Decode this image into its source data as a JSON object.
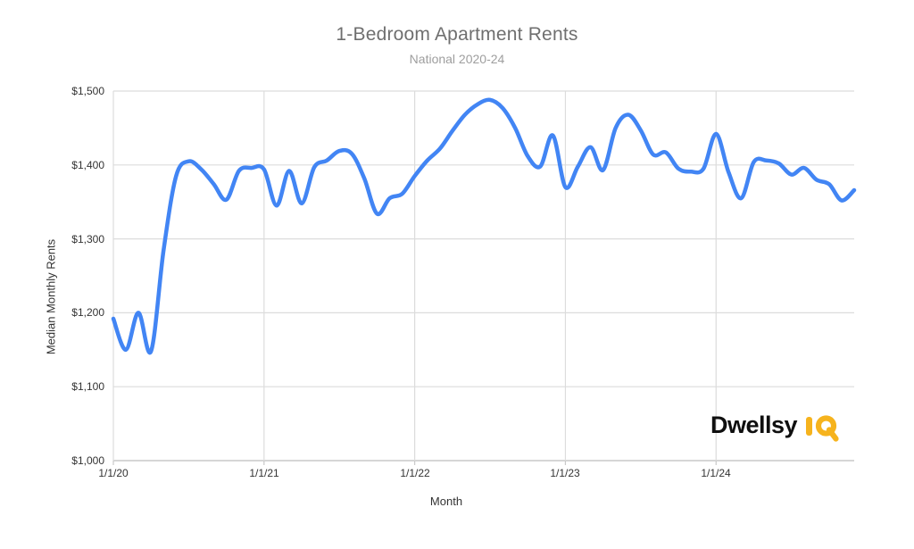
{
  "chart_data": {
    "type": "line",
    "title": "1-Bedroom Apartment Rents",
    "subtitle": "National 2020-24",
    "xlabel": "Month",
    "ylabel": "Median Monthly Rents",
    "x_tick_labels": [
      "1/1/20",
      "1/1/21",
      "1/1/22",
      "1/1/23",
      "1/1/24"
    ],
    "y_tick_labels": [
      "$1,000",
      "$1,100",
      "$1,200",
      "$1,300",
      "$1,400",
      "$1,500"
    ],
    "ylim": [
      1000,
      1500
    ],
    "y_tick_step": 100,
    "grid": true,
    "legend": "none",
    "line_color": "#4285F4",
    "grid_color": "#dcdcdc",
    "axis_color": "#c9c9c9",
    "months": [
      "1/2020",
      "2/2020",
      "3/2020",
      "4/2020",
      "5/2020",
      "6/2020",
      "7/2020",
      "8/2020",
      "9/2020",
      "10/2020",
      "11/2020",
      "12/2020",
      "1/2021",
      "2/2021",
      "3/2021",
      "4/2021",
      "5/2021",
      "6/2021",
      "7/2021",
      "8/2021",
      "9/2021",
      "10/2021",
      "11/2021",
      "12/2021",
      "1/2022",
      "2/2022",
      "3/2022",
      "4/2022",
      "5/2022",
      "6/2022",
      "7/2022",
      "8/2022",
      "9/2022",
      "10/2022",
      "11/2022",
      "12/2022",
      "1/2023",
      "2/2023",
      "3/2023",
      "4/2023",
      "5/2023",
      "6/2023",
      "7/2023",
      "8/2023",
      "9/2023",
      "10/2023",
      "11/2023",
      "12/2023",
      "1/2024",
      "2/2024",
      "3/2024",
      "4/2024",
      "5/2024",
      "6/2024",
      "7/2024",
      "8/2024",
      "9/2024",
      "10/2024",
      "11/2024",
      "12/2024"
    ],
    "series": [
      {
        "name": "Median Monthly Rents",
        "values": [
          1192,
          1150,
          1200,
          1148,
          1285,
          1385,
          1405,
          1394,
          1374,
          1353,
          1392,
          1396,
          1394,
          1345,
          1392,
          1348,
          1397,
          1406,
          1419,
          1415,
          1381,
          1334,
          1355,
          1361,
          1385,
          1406,
          1422,
          1446,
          1468,
          1482,
          1488,
          1477,
          1450,
          1412,
          1398,
          1440,
          1370,
          1398,
          1424,
          1393,
          1450,
          1468,
          1447,
          1414,
          1417,
          1395,
          1391,
          1395,
          1442,
          1390,
          1355,
          1404,
          1406,
          1402,
          1387,
          1396,
          1380,
          1374,
          1352,
          1366
        ]
      }
    ]
  },
  "logo": {
    "name": "Dwellsy",
    "iq": "IQ",
    "black": "#0f0f0f",
    "yellow": "#F6B31D"
  }
}
